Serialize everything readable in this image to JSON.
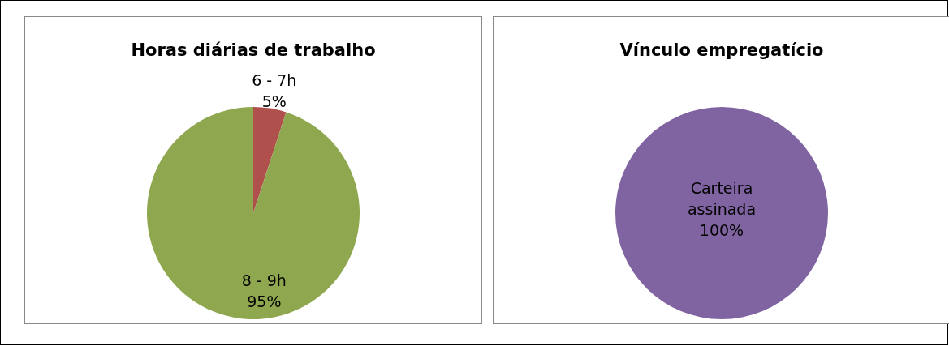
{
  "chart_data": [
    {
      "type": "pie",
      "title": "Horas diárias de trabalho",
      "categories": [
        "6 - 7h",
        "8 - 9h"
      ],
      "values": [
        5,
        95
      ],
      "colors": [
        "#b0504d",
        "#8fa84f"
      ],
      "value_labels": [
        "5%",
        "95%"
      ]
    },
    {
      "type": "pie",
      "title": "Vínculo empregatício",
      "categories": [
        "Carteira assinada"
      ],
      "values": [
        100
      ],
      "colors": [
        "#8064a2"
      ],
      "value_labels": [
        "100%"
      ]
    }
  ]
}
